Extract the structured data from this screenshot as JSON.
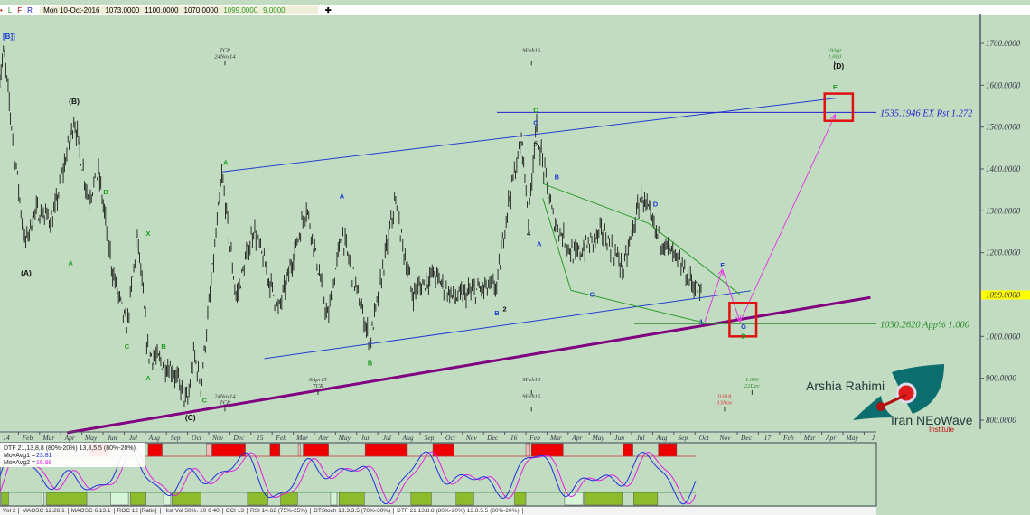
{
  "toolbar": {
    "flags": [
      "•",
      "L",
      "F",
      "R"
    ],
    "flag_colors": [
      "#d00000",
      "#2a8a2a",
      "#b00000",
      "#1010c0"
    ],
    "date": "Mon 10-Oct-2016",
    "open": "1073.0000",
    "high": "1100.0000",
    "low": "1070.0000",
    "close": "1099.0000",
    "change": "9.0000",
    "crosshair_icon": "plus-icon"
  },
  "chart_data": {
    "type": "candlestick",
    "corner_label": "[B]]",
    "y_axis": {
      "min": 770,
      "max": 1770,
      "ticks": [
        "1700.0000",
        "1600.0000",
        "1500.0000",
        "1400.0000",
        "1300.0000",
        "1200.0000",
        "1000.0000",
        "900.0000",
        "800.0000"
      ],
      "tick_values": [
        1700,
        1600,
        1500,
        1400,
        1300,
        1200,
        1000,
        900,
        800
      ]
    },
    "last_price": {
      "label": "1099.0000",
      "value": 1099,
      "color": "#ffff00"
    },
    "x_axis": {
      "start": "2014-01-01",
      "end": "2017-06-10",
      "months": [
        [
          "2014-01",
          "14"
        ],
        [
          "2014-02",
          "Feb"
        ],
        [
          "2014-03",
          "Mar"
        ],
        [
          "2014-04",
          "Apr"
        ],
        [
          "2014-05",
          "May"
        ],
        [
          "2014-06",
          "Jun"
        ],
        [
          "2014-07",
          "Jul"
        ],
        [
          "2014-08",
          "Aug"
        ],
        [
          "2014-09",
          "Sep"
        ],
        [
          "2014-10",
          "Oct"
        ],
        [
          "2014-11",
          "Nov"
        ],
        [
          "2014-12",
          "Dec"
        ],
        [
          "2015-01",
          "15"
        ],
        [
          "2015-02",
          "Feb"
        ],
        [
          "2015-03",
          "Mar"
        ],
        [
          "2015-04",
          "Apr"
        ],
        [
          "2015-05",
          "May"
        ],
        [
          "2015-06",
          "Jun"
        ],
        [
          "2015-07",
          "Jul"
        ],
        [
          "2015-08",
          "Aug"
        ],
        [
          "2015-09",
          "Sep"
        ],
        [
          "2015-10",
          "Oct"
        ],
        [
          "2015-11",
          "Nov"
        ],
        [
          "2015-12",
          "Dec"
        ],
        [
          "2016-01",
          "16"
        ],
        [
          "2016-02",
          "Feb"
        ],
        [
          "2016-03",
          "Mar"
        ],
        [
          "2016-04",
          "Apr"
        ],
        [
          "2016-05",
          "May"
        ],
        [
          "2016-06",
          "Jun"
        ],
        [
          "2016-07",
          "Jul"
        ],
        [
          "2016-08",
          "Aug"
        ],
        [
          "2016-09",
          "Sep"
        ],
        [
          "2016-10",
          "Oct"
        ],
        [
          "2016-11",
          "Nov"
        ],
        [
          "2016-12",
          "Dec"
        ],
        [
          "2017-01",
          "17"
        ],
        [
          "2017-02",
          "Feb"
        ],
        [
          "2017-03",
          "Mar"
        ],
        [
          "2017-04",
          "Apr"
        ],
        [
          "2017-05",
          "May"
        ],
        [
          "2017-06",
          "J"
        ]
      ]
    },
    "price_pivots": [
      [
        "2014-01-03",
        1600
      ],
      [
        "2014-01-10",
        1680
      ],
      [
        "2014-01-25",
        1450
      ],
      [
        "2014-02-10",
        1220
      ],
      [
        "2014-02-25",
        1300
      ],
      [
        "2014-03-20",
        1280
      ],
      [
        "2014-04-20",
        1520
      ],
      [
        "2014-05-10",
        1330
      ],
      [
        "2014-05-25",
        1390
      ],
      [
        "2014-06-15",
        1150
      ],
      [
        "2014-07-05",
        1020
      ],
      [
        "2014-07-20",
        1242
      ],
      [
        "2014-08-05",
        960
      ],
      [
        "2014-09-10",
        920
      ],
      [
        "2014-10-01",
        840
      ],
      [
        "2014-10-10",
        960
      ],
      [
        "2014-10-20",
        880
      ],
      [
        "2014-11-20",
        1385
      ],
      [
        "2014-12-10",
        1090
      ],
      [
        "2015-01-05",
        1260
      ],
      [
        "2015-02-10",
        1060
      ],
      [
        "2015-03-20",
        1310
      ],
      [
        "2015-04-20",
        1040
      ],
      [
        "2015-05-10",
        1250
      ],
      [
        "2015-06-20",
        985
      ],
      [
        "2015-07-25",
        1320
      ],
      [
        "2015-08-20",
        1100
      ],
      [
        "2015-09-20",
        1150
      ],
      [
        "2015-10-20",
        1090
      ],
      [
        "2015-11-20",
        1110
      ],
      [
        "2015-12-20",
        1120
      ],
      [
        "2016-01-05",
        1310
      ],
      [
        "2016-01-25",
        1470
      ],
      [
        "2016-02-05",
        1280
      ],
      [
        "2016-02-15",
        1505
      ],
      [
        "2016-03-10",
        1280
      ],
      [
        "2016-04-10",
        1190
      ],
      [
        "2016-05-20",
        1250
      ],
      [
        "2016-06-20",
        1160
      ],
      [
        "2016-07-15",
        1340
      ],
      [
        "2016-08-05",
        1250
      ],
      [
        "2016-09-10",
        1170
      ],
      [
        "2016-10-10",
        1099
      ]
    ],
    "trendlines": [
      {
        "from": [
          "2014-11-20",
          1393
        ],
        "to": [
          "2017-04-25",
          1570
        ],
        "color": "#1f3fd0",
        "width": 1
      },
      {
        "from": [
          "2015-01-20",
          947
        ],
        "to": [
          "2016-12-20",
          1109
        ],
        "color": "#1f3fd0",
        "width": 1
      },
      {
        "from": [
          "2014-04-10",
          770
        ],
        "to": [
          "2017-06-10",
          1093
        ],
        "color": "#800080",
        "width": 3
      },
      {
        "from": [
          "2016-02-25",
          1365
        ],
        "to": [
          "2016-07-25",
          1270
        ],
        "color": "#2a9a2a",
        "width": 1
      },
      {
        "from": [
          "2016-07-25",
          1270
        ],
        "to": [
          "2016-12-05",
          1100
        ],
        "color": "#2a9a2a",
        "width": 1
      },
      {
        "from": [
          "2016-02-25",
          1330
        ],
        "to": [
          "2016-04-05",
          1110
        ],
        "color": "#2a9a2a",
        "width": 1
      },
      {
        "from": [
          "2016-04-05",
          1110
        ],
        "to": [
          "2016-10-20",
          1030
        ],
        "color": "#2a9a2a",
        "width": 1
      }
    ],
    "projection_path": {
      "color": "#e040e0",
      "points": [
        [
          "2016-10-15",
          1035
        ],
        [
          "2016-11-10",
          1160
        ],
        [
          "2016-12-05",
          1035
        ],
        [
          "2017-04-20",
          1530
        ]
      ]
    },
    "levels": [
      {
        "value": 1535.1946,
        "from": "2015-12-20",
        "label": "1535.1946 EX Rst 1.272",
        "color": "#2020d0"
      },
      {
        "value": 1030.262,
        "from": "2016-07-05",
        "label": "1030.2620 App% 1.000",
        "color": "#2a8a2a"
      }
    ],
    "target_boxes": [
      {
        "from": "2016-11-20",
        "to": "2016-12-28",
        "high": 1080,
        "low": 1000,
        "color": "#e01010"
      },
      {
        "from": "2017-04-05",
        "to": "2017-05-15",
        "high": 1580,
        "low": 1515,
        "color": "#e01010"
      }
    ],
    "wave_labels": [
      {
        "text": "(A)",
        "date": "2014-02-12",
        "price": 1145,
        "color": "#111"
      },
      {
        "text": "(B)",
        "date": "2014-04-20",
        "price": 1555,
        "color": "#111"
      },
      {
        "text": "(C)",
        "date": "2014-10-05",
        "price": 800,
        "color": "#111"
      },
      {
        "text": "(D)",
        "date": "2017-04-25",
        "price": 1640,
        "color": "#111"
      },
      {
        "text": "A",
        "date": "2014-04-15",
        "price": 1170,
        "color": "#1a9a1a"
      },
      {
        "text": "B",
        "date": "2014-06-05",
        "price": 1340,
        "color": "#1a9a1a"
      },
      {
        "text": "C",
        "date": "2014-07-05",
        "price": 970,
        "color": "#1a9a1a"
      },
      {
        "text": "X",
        "date": "2014-08-05",
        "price": 1240,
        "color": "#1a9a1a"
      },
      {
        "text": "A",
        "date": "2014-08-05",
        "price": 895,
        "color": "#1a9a1a"
      },
      {
        "text": "B",
        "date": "2014-08-27",
        "price": 970,
        "color": "#1a9a1a"
      },
      {
        "text": "C",
        "date": "2014-10-25",
        "price": 842,
        "color": "#1a9a1a"
      },
      {
        "text": "A",
        "date": "2014-11-25",
        "price": 1410,
        "color": "#1a9a1a"
      },
      {
        "text": "B",
        "date": "2015-06-20",
        "price": 930,
        "color": "#1a9a1a"
      },
      {
        "text": "C",
        "date": "2016-02-15",
        "price": 1535,
        "color": "#1a9a1a"
      },
      {
        "text": "D",
        "date": "2016-12-10",
        "price": 995,
        "color": "#1a9a1a"
      },
      {
        "text": "E",
        "date": "2017-04-20",
        "price": 1590,
        "color": "#1a9a1a"
      },
      {
        "text": "A",
        "date": "2015-05-10",
        "price": 1330,
        "color": "#1a3ad0"
      },
      {
        "text": "B",
        "date": "2015-12-20",
        "price": 1050,
        "color": "#1a3ad0"
      },
      {
        "text": "C",
        "date": "2016-02-15",
        "price": 1505,
        "color": "#1a3ad0"
      },
      {
        "text": "A",
        "date": "2016-02-20",
        "price": 1215,
        "color": "#1a3ad0"
      },
      {
        "text": "B",
        "date": "2016-03-15",
        "price": 1375,
        "color": "#1a3ad0"
      },
      {
        "text": "C",
        "date": "2016-05-05",
        "price": 1095,
        "color": "#1a3ad0"
      },
      {
        "text": "D",
        "date": "2016-08-05",
        "price": 1310,
        "color": "#1a3ad0"
      },
      {
        "text": "F",
        "date": "2016-11-10",
        "price": 1165,
        "color": "#1a3ad0"
      },
      {
        "text": "G",
        "date": "2016-12-10",
        "price": 1018,
        "color": "#1a3ad0"
      },
      {
        "text": "1",
        "date": "2016-10-10",
        "price": 1030,
        "color": "#1a3ad0"
      },
      {
        "text": "3",
        "date": "2016-01-25",
        "price": 1455,
        "color": "#111"
      },
      {
        "text": "5",
        "date": "2016-02-15",
        "price": 1455,
        "color": "#111"
      },
      {
        "text": "4",
        "date": "2016-02-05",
        "price": 1240,
        "color": "#111"
      },
      {
        "text": "2",
        "date": "2016-01-01",
        "price": 1060,
        "color": "#111"
      }
    ],
    "time_markers": [
      {
        "date": "2014-11-24",
        "lines": [
          "TCR",
          "24Nov14"
        ],
        "price": 1680,
        "color": "#333"
      },
      {
        "date": "2016-02-09",
        "lines": [
          "9Feb16"
        ],
        "price": 1680,
        "color": "#333"
      },
      {
        "date": "2017-04-19",
        "lines": [
          "19Apr",
          "1.000"
        ],
        "price": 1680,
        "color": "#2a8a2a"
      },
      {
        "date": "2015-04-06",
        "lines": [
          "6Apr15",
          "TCR"
        ],
        "price": 893,
        "color": "#333"
      },
      {
        "date": "2016-02-09",
        "lines": [
          "9Feb16"
        ],
        "price": 893,
        "color": "#333"
      },
      {
        "date": "2016-12-22",
        "lines": [
          "1.000",
          "22Dec"
        ],
        "price": 893,
        "color": "#2a8a2a"
      },
      {
        "date": "2014-11-24",
        "lines": [
          "24Nov14",
          "TCR"
        ],
        "price": 853,
        "color": "#333"
      },
      {
        "date": "2016-02-09",
        "lines": [
          "9Feb16"
        ],
        "price": 853,
        "color": "#333"
      },
      {
        "date": "2016-11-13",
        "lines": [
          "0.618",
          "13Nov"
        ],
        "price": 853,
        "color": "#e03030"
      }
    ]
  },
  "indicator": {
    "title": "DTF 21,13,8,8 (80%-20%) 13,8,5,5 (80%-20%)",
    "mov_avg1_label": "MovAvg1 =",
    "mov_avg1_value": "23.81",
    "mov_avg1_color": "#2030e0",
    "mov_avg2_label": "MovAvg2 =",
    "mov_avg2_value": "16.98",
    "mov_avg2_color": "#e020e0",
    "overbought_zones": [
      [
        "2014-05-11",
        "2014-06-09"
      ],
      [
        "2014-08-05",
        "2014-08-25"
      ],
      [
        "2014-11-06",
        "2014-12-23"
      ],
      [
        "2015-01-28",
        "2015-02-12"
      ],
      [
        "2015-03-15",
        "2015-04-21"
      ],
      [
        "2015-06-13",
        "2015-08-13"
      ],
      [
        "2015-09-19",
        "2015-10-19"
      ],
      [
        "2016-02-09",
        "2016-03-24"
      ],
      [
        "2016-06-19",
        "2016-07-03"
      ],
      [
        "2016-08-09",
        "2016-09-05"
      ]
    ],
    "overbought_light_zones": [
      [
        "2014-10-28",
        "2014-11-05"
      ],
      [
        "2015-03-08",
        "2015-03-11"
      ],
      [
        "2016-02-01",
        "2016-02-07"
      ]
    ],
    "oversold_zones": [
      [
        "2014-01-07",
        "2014-01-17"
      ],
      [
        "2014-03-11",
        "2014-05-08"
      ],
      [
        "2014-07-10",
        "2014-08-02"
      ],
      [
        "2014-09-09",
        "2014-10-20"
      ],
      [
        "2014-12-26",
        "2015-01-25"
      ],
      [
        "2015-02-13",
        "2015-03-07"
      ],
      [
        "2015-05-06",
        "2015-06-12"
      ],
      [
        "2015-08-18",
        "2015-09-17"
      ],
      [
        "2015-10-22",
        "2015-11-17"
      ],
      [
        "2016-01-15",
        "2016-02-01"
      ],
      [
        "2016-04-24",
        "2016-06-18"
      ],
      [
        "2016-07-04",
        "2016-08-08"
      ]
    ],
    "oversold_light_zones": [
      [
        "2014-03-04",
        "2014-03-07"
      ],
      [
        "2014-06-12",
        "2014-07-07"
      ],
      [
        "2014-08-27",
        "2014-09-07"
      ],
      [
        "2015-04-24",
        "2015-05-03"
      ],
      [
        "2016-03-26",
        "2016-04-22"
      ]
    ]
  },
  "tabs": [
    "Vol 2",
    "MAOSC 12.26.1",
    "MAOSC 6.13.1",
    "ROC 12 [Ratio]",
    "Hist Vol 50%. 10 6 40",
    "CCI 13",
    "RSI 14.62 (75%-25%)",
    "DTStoch 13.3.3.5 (70%-30%)",
    "DTF 21.13.8.8 (80%-20%) 13.8.5.5 (80%-20%)"
  ],
  "logo": {
    "name": "Arshia Rahimi",
    "org": "Iran NEoWave",
    "sub": "Institute"
  }
}
